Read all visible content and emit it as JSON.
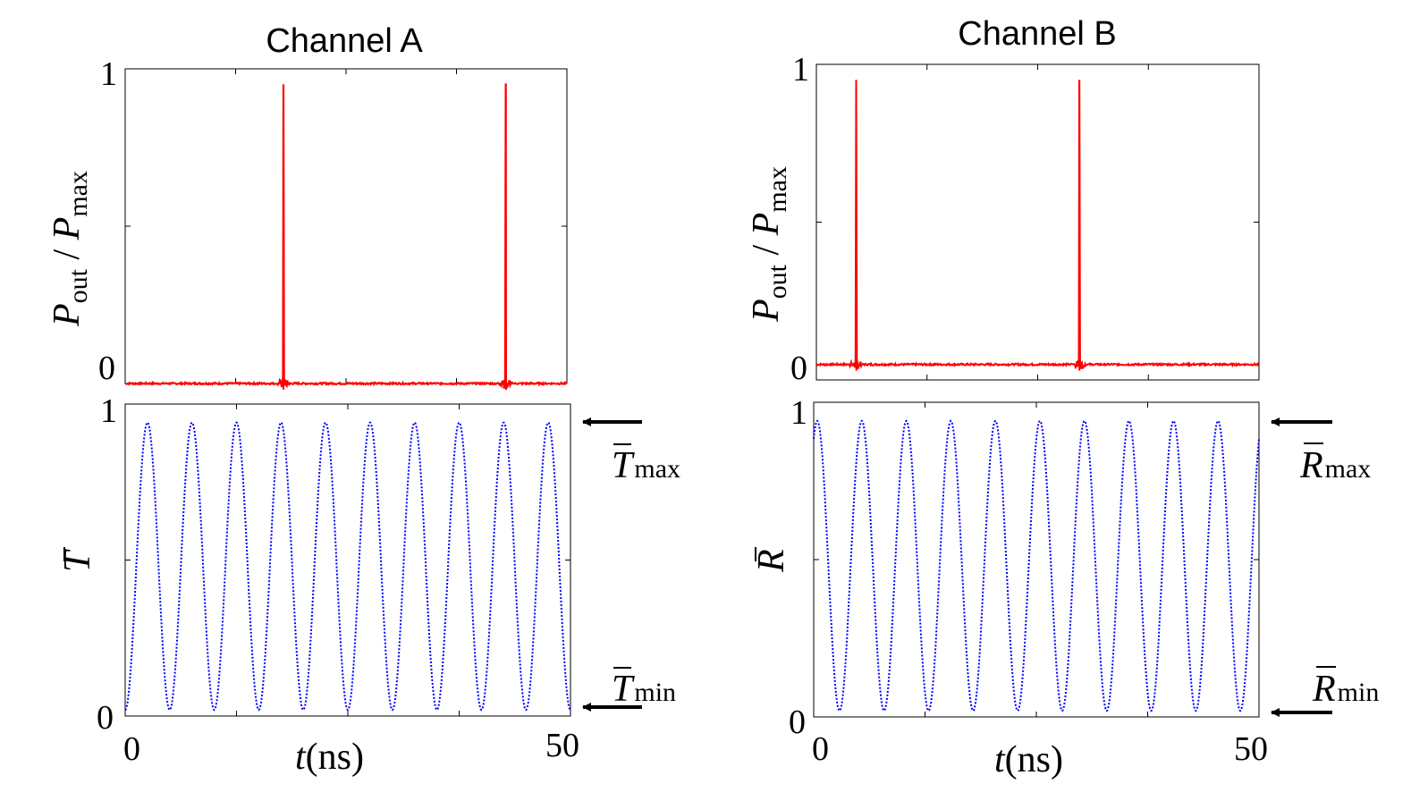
{
  "panels": {
    "a_title": "Channel A",
    "b_title": "Channel B"
  },
  "ylabels": {
    "power": "P",
    "power_sub": "out",
    "slash": " / ",
    "power_max": "P",
    "power_max_sub": "max",
    "T": "T",
    "R": "R"
  },
  "xlabel": {
    "t": "t",
    "unit": "(ns)"
  },
  "ticks": {
    "zero": "0",
    "one": "1",
    "fifty": "50"
  },
  "markers": {
    "T_sym": "T",
    "R_sym": "R",
    "max": "max",
    "min": "min"
  },
  "colors": {
    "pulse": "#ff0000",
    "oscillation": "#0000ff"
  },
  "chart_data": [
    {
      "type": "line",
      "title": "Channel A",
      "panel": "top",
      "series": [
        {
          "color": "#ff0000",
          "baseline": 0.0,
          "spike_x": [
            17.9,
            43.1
          ],
          "spike_height": 0.97
        }
      ],
      "xlim": [
        0,
        50
      ],
      "ylim": [
        0,
        1
      ],
      "xticks": [
        0,
        50
      ],
      "yticks": [
        0,
        1
      ],
      "ylabel": "Pout / Pmax"
    },
    {
      "type": "line",
      "panel": "bottom",
      "series": [
        {
          "color": "#0000ff",
          "style": "dotted",
          "min": 0.02,
          "max": 0.96,
          "period_ns": 5.0,
          "first_max_ns": 2.5
        }
      ],
      "xlim": [
        0,
        50
      ],
      "ylim": [
        0,
        1
      ],
      "xticks": [
        0,
        50
      ],
      "yticks": [
        0,
        1
      ],
      "xlabel": "t(ns)",
      "ylabel": "T̄",
      "annotations": [
        "T̄max",
        "T̄min"
      ]
    },
    {
      "type": "line",
      "title": "Channel B",
      "panel": "top",
      "series": [
        {
          "color": "#ff0000",
          "baseline": 0.05,
          "spike_x": [
            4.5,
            29.7
          ],
          "spike_height": 0.97
        }
      ],
      "xlim": [
        0,
        50
      ],
      "ylim": [
        0,
        1
      ],
      "xticks": [
        0,
        50
      ],
      "yticks": [
        0,
        1
      ],
      "ylabel": "Pout / Pmax"
    },
    {
      "type": "line",
      "panel": "bottom",
      "series": [
        {
          "color": "#0000ff",
          "style": "dotted",
          "min": 0.02,
          "max": 0.96,
          "period_ns": 5.0,
          "first_max_ns": 0.4
        }
      ],
      "xlim": [
        0,
        50
      ],
      "ylim": [
        0,
        1
      ],
      "xticks": [
        0,
        50
      ],
      "yticks": [
        0,
        1
      ],
      "xlabel": "t(ns)",
      "ylabel": "R̄",
      "annotations": [
        "R̄max",
        "R̄min"
      ]
    }
  ]
}
